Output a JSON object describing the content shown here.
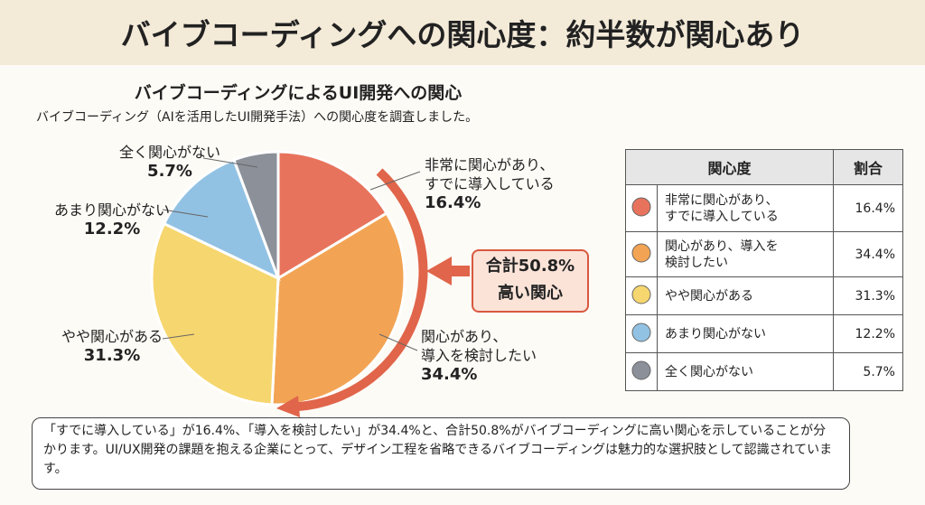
{
  "header": {
    "title": "バイブコーディングへの関心度：約半数が関心あり"
  },
  "chart_data": {
    "type": "pie",
    "title": "バイブコーディングによるUI開発への関心",
    "subtitle": "バイブコーディング（AIを活用したUI開発手法）への関心度を調査しました。",
    "categories": [
      "非常に関心があり、\nすでに導入している",
      "関心があり、\n導入を検討したい",
      "やや関心がある",
      "あまり関心がない",
      "全く関心がない"
    ],
    "values": [
      16.4,
      34.4,
      31.3,
      12.2,
      5.7
    ],
    "value_labels": [
      "16.4%",
      "34.4%",
      "31.3%",
      "12.2%",
      "5.7%"
    ],
    "colors": [
      "#e8735c",
      "#f2a454",
      "#f6d66e",
      "#92c2e3",
      "#8b9099"
    ],
    "annotations": [
      "合計50.8%",
      "高い関心"
    ]
  },
  "table": {
    "header": [
      "関心度",
      "割合"
    ],
    "rows": [
      "非常に関心があり、\nすでに導入している",
      "関心があり、導入を\n検討したい",
      "やや関心がある",
      "あまり関心がない",
      "全く関心がない"
    ]
  },
  "summary": "「すでに導入している」が16.4%、「導入を検討したい」が34.4%と、合計50.8%がバイブコーディングに高い関心を示していることが分かります。UI/UX開発の課題を抱える企業にとって、デザイン工程を省略できるバイブコーディングは魅力的な選択肢として認識されています。"
}
